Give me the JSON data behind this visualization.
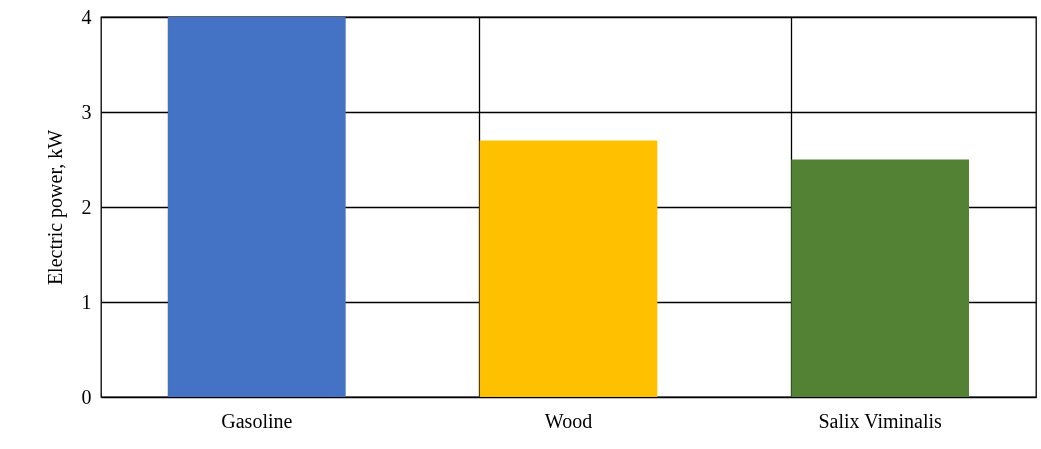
{
  "chart_data": {
    "type": "bar",
    "ylabel": "Electric power, kW",
    "categories": [
      "Gasoline",
      "Wood",
      "Salix Viminalis"
    ],
    "values": [
      4,
      2.7,
      2.5
    ],
    "colors": [
      "#4472c4",
      "#ffc000",
      "#548235"
    ],
    "ylim": [
      0,
      4
    ],
    "yticks": [
      0,
      1,
      2,
      3,
      4
    ],
    "grid": true
  }
}
